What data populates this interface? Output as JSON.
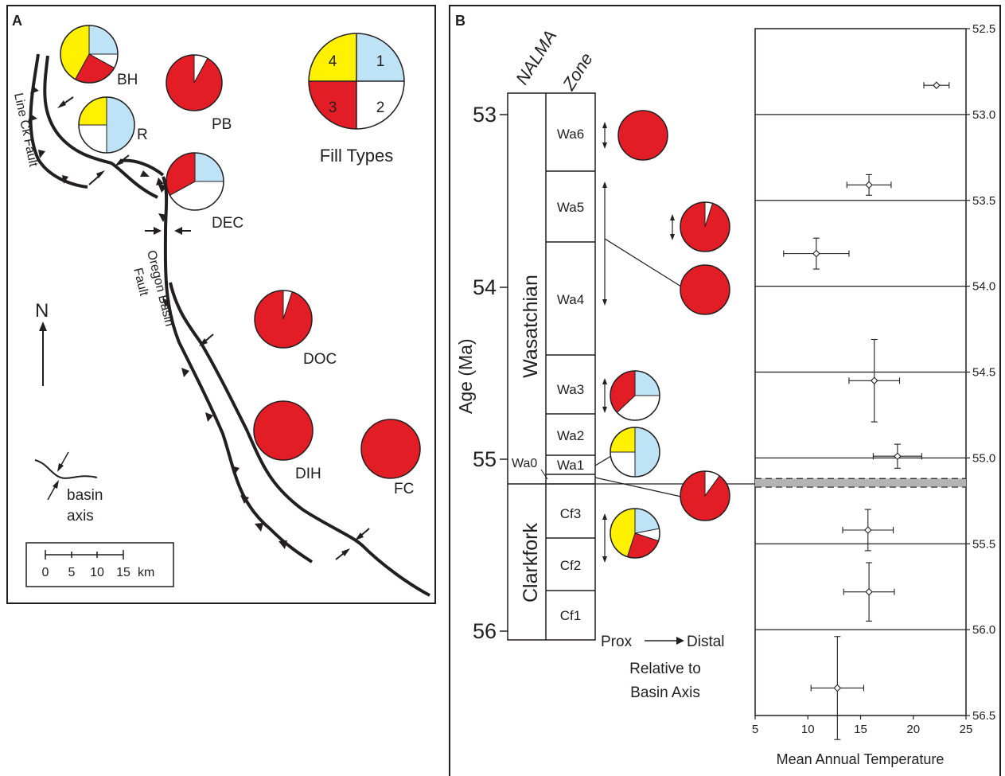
{
  "panel_a": {
    "label": "A",
    "legend": {
      "title": "Fill Types",
      "quadrants": [
        {
          "number": "1",
          "color": "#bee3f7"
        },
        {
          "number": "2",
          "color": "#ffffff"
        },
        {
          "number": "3",
          "color": "#e31d25"
        },
        {
          "number": "4",
          "color": "#fff100"
        }
      ]
    },
    "sites": [
      {
        "name": "BH",
        "fractions": {
          "1": 0.25,
          "2": 0.08,
          "3": 0.25,
          "4": 0.42
        }
      },
      {
        "name": "R",
        "fractions": {
          "1": 0.5,
          "2": 0.25,
          "3": 0.0,
          "4": 0.25
        }
      },
      {
        "name": "PB",
        "fractions": {
          "1": 0.0,
          "2": 0.08,
          "3": 0.92,
          "4": 0.0
        }
      },
      {
        "name": "DEC",
        "fractions": {
          "1": 0.25,
          "2": 0.42,
          "3": 0.33,
          "4": 0.0
        }
      },
      {
        "name": "DOC",
        "fractions": {
          "1": 0.0,
          "2": 0.05,
          "3": 0.95,
          "4": 0.0
        }
      },
      {
        "name": "DIH",
        "fractions": {
          "1": 0.0,
          "2": 0.0,
          "3": 1.0,
          "4": 0.0
        }
      },
      {
        "name": "FC",
        "fractions": {
          "1": 0.0,
          "2": 0.0,
          "3": 1.0,
          "4": 0.0
        }
      }
    ],
    "faults": {
      "line_creek": "Line Ck Fault",
      "oregon_basin_1": "Oregon Basin",
      "oregon_basin_2": "Fault"
    },
    "north": "N",
    "basin_axis_1": "basin",
    "basin_axis_2": "axis",
    "scale_bar": {
      "ticks": [
        "0",
        "5",
        "10",
        "15"
      ],
      "unit": "km"
    }
  },
  "panel_b": {
    "label": "B",
    "nalma_header": "NALMA",
    "zone_header": "Zone",
    "age_axis_label": "Age (Ma)",
    "age_ticks": [
      "53",
      "54",
      "55",
      "56"
    ],
    "stages": [
      "Wasatchian",
      "Clarkfork"
    ],
    "zones": [
      "Wa6",
      "Wa5",
      "Wa4",
      "Wa3",
      "Wa2",
      "Wa1",
      "Wa0",
      "Cf3",
      "Cf2",
      "Cf1"
    ],
    "gradient": {
      "left": "Prox",
      "right": "Distal",
      "caption_1": "Relative to",
      "caption_2": "Basin Axis"
    },
    "zone_pies": [
      {
        "zone": "Wa6",
        "fractions": {
          "1": 0.0,
          "2": 0.0,
          "3": 1.0,
          "4": 0.0
        }
      },
      {
        "zone": "Wa5",
        "fractions": {
          "1": 0.0,
          "2": 0.05,
          "3": 0.95,
          "4": 0.0
        }
      },
      {
        "zone": "Wa4",
        "fractions": {
          "1": 0.0,
          "2": 0.0,
          "3": 1.0,
          "4": 0.0
        }
      },
      {
        "zone": "Wa3",
        "fractions": {
          "1": 0.25,
          "2": 0.38,
          "3": 0.37,
          "4": 0.0
        }
      },
      {
        "zone": "Wa1",
        "fractions": {
          "1": 0.5,
          "2": 0.25,
          "3": 0.0,
          "4": 0.25
        }
      },
      {
        "zone": "Wa0",
        "fractions": {
          "1": 0.0,
          "2": 0.1,
          "3": 0.9,
          "4": 0.0
        }
      },
      {
        "zone": "Cf3",
        "fractions": {
          "1": 0.22,
          "2": 0.08,
          "3": 0.25,
          "4": 0.45
        }
      }
    ]
  },
  "chart_data": {
    "type": "scatter",
    "xlabel": "Mean Annual Temperature",
    "ylabel": "",
    "xlim": [
      5,
      25
    ],
    "ylim": [
      56.5,
      52.5
    ],
    "x_ticks": [
      5,
      10,
      15,
      20,
      25
    ],
    "y_ticks": [
      52.5,
      53.0,
      53.5,
      54.0,
      54.5,
      55.0,
      55.5,
      56.0,
      56.5
    ],
    "y_tick_labels": [
      "52.5",
      "53.0",
      "53.5",
      "54.0",
      "54.5",
      "55.0",
      "55.5",
      "56.0",
      "56.5"
    ],
    "grid_y": [
      53.0,
      53.5,
      54.0,
      54.5,
      55.0,
      55.5,
      56.0
    ],
    "points": [
      {
        "x": 22.2,
        "y": 52.83,
        "xerr": 1.2,
        "yerr": 0.0
      },
      {
        "x": 15.8,
        "y": 53.41,
        "xerr": 2.1,
        "yerr": 0.06
      },
      {
        "x": 10.8,
        "y": 53.81,
        "xerr": 3.1,
        "yerr": 0.09
      },
      {
        "x": 16.3,
        "y": 54.55,
        "xerr": 2.4,
        "yerr": 0.24
      },
      {
        "x": 18.5,
        "y": 54.99,
        "xerr": 2.3,
        "yerr": 0.07
      },
      {
        "x": 15.7,
        "y": 55.42,
        "xerr": 2.4,
        "yerr": 0.12
      },
      {
        "x": 15.8,
        "y": 55.78,
        "xerr": 2.4,
        "yerr": 0.17
      },
      {
        "x": 12.8,
        "y": 56.34,
        "xerr": 2.5,
        "yerr": 0.3
      }
    ],
    "highlight_band": [
      55.12,
      55.17
    ]
  }
}
